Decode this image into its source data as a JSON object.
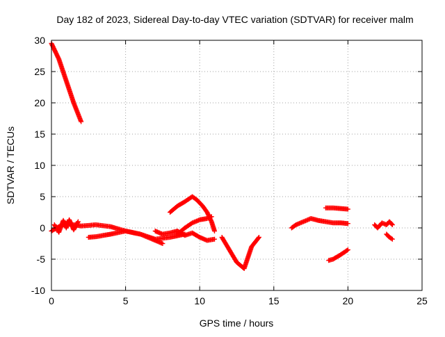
{
  "chart_data": {
    "type": "scatter",
    "title": "Day 182 of 2023, Sidereal Day-to-day VTEC variation (SDTVAR) for receiver malm",
    "xlabel": "GPS time / hours",
    "ylabel": "SDTVAR / TECUs",
    "xlim": [
      0,
      25
    ],
    "ylim": [
      -10,
      30
    ],
    "xticks": [
      0,
      5,
      10,
      15,
      20,
      25
    ],
    "yticks": [
      -10,
      -5,
      0,
      5,
      10,
      15,
      20,
      25,
      30
    ],
    "grid": true,
    "legend": "none",
    "series": [
      {
        "name": "SDTVAR",
        "color": "#ff0000",
        "marker": "plus",
        "tracks": [
          {
            "x": [
              0.0,
              0.5,
              1.0,
              1.5,
              2.0
            ],
            "y": [
              29.5,
              27.0,
              23.5,
              20.0,
              17.0
            ]
          },
          {
            "x": [
              0.0,
              0.5,
              1.0,
              1.5,
              2.0,
              3.0,
              4.0,
              5.0,
              6.0,
              7.0,
              8.0,
              9.0
            ],
            "y": [
              -0.5,
              0.2,
              0.7,
              0.5,
              0.3,
              0.5,
              0.2,
              -0.5,
              -1.0,
              -1.8,
              -1.5,
              -1.0
            ]
          },
          {
            "x": [
              0.2,
              0.5,
              0.8,
              1.0,
              1.2,
              1.5,
              1.8
            ],
            "y": [
              0.5,
              -0.7,
              1.2,
              0.0,
              1.3,
              -0.3,
              1.0
            ]
          },
          {
            "x": [
              2.5,
              3.0,
              4.0,
              5.0,
              6.0,
              7.0,
              7.5
            ],
            "y": [
              -1.5,
              -1.4,
              -1.0,
              -0.5,
              -1.0,
              -2.0,
              -2.5
            ]
          },
          {
            "x": [
              7.0,
              7.5,
              8.0,
              8.5,
              9.0,
              9.5,
              10.0,
              10.5,
              11.0
            ],
            "y": [
              -0.5,
              -1.0,
              -0.8,
              -0.5,
              -1.2,
              -0.8,
              -1.5,
              -2.0,
              -1.8
            ]
          },
          {
            "x": [
              8.0,
              8.5,
              9.0,
              9.5,
              9.8,
              10.2,
              10.5,
              10.8,
              11.0
            ],
            "y": [
              2.5,
              3.5,
              4.2,
              5.0,
              4.5,
              3.5,
              2.5,
              1.0,
              -0.5
            ]
          },
          {
            "x": [
              8.5,
              9.0,
              9.5,
              10.0,
              10.5,
              10.8
            ],
            "y": [
              -1.0,
              0.0,
              0.8,
              1.3,
              1.5,
              1.8
            ]
          },
          {
            "x": [
              11.5,
              12.0,
              12.5,
              13.0,
              13.5,
              14.0
            ],
            "y": [
              -1.5,
              -3.5,
              -5.5,
              -6.5,
              -3.0,
              -1.5
            ]
          },
          {
            "x": [
              16.2,
              16.5,
              17.0,
              17.5,
              18.0,
              18.5,
              19.0,
              19.5,
              20.0
            ],
            "y": [
              0.0,
              0.5,
              1.0,
              1.5,
              1.2,
              1.0,
              0.8,
              0.8,
              0.7
            ]
          },
          {
            "x": [
              18.5,
              19.0,
              19.5,
              20.0
            ],
            "y": [
              3.2,
              3.2,
              3.1,
              3.0
            ]
          },
          {
            "x": [
              18.7,
              19.0,
              19.5,
              20.0
            ],
            "y": [
              -5.2,
              -5.0,
              -4.3,
              -3.5
            ]
          },
          {
            "x": [
              21.8,
              22.0,
              22.3,
              22.6,
              22.8,
              23.0
            ],
            "y": [
              0.5,
              0.0,
              0.8,
              0.5,
              1.0,
              0.5
            ]
          },
          {
            "x": [
              22.6,
              22.8,
              23.0
            ],
            "y": [
              -1.0,
              -1.5,
              -1.8
            ]
          }
        ]
      }
    ]
  }
}
